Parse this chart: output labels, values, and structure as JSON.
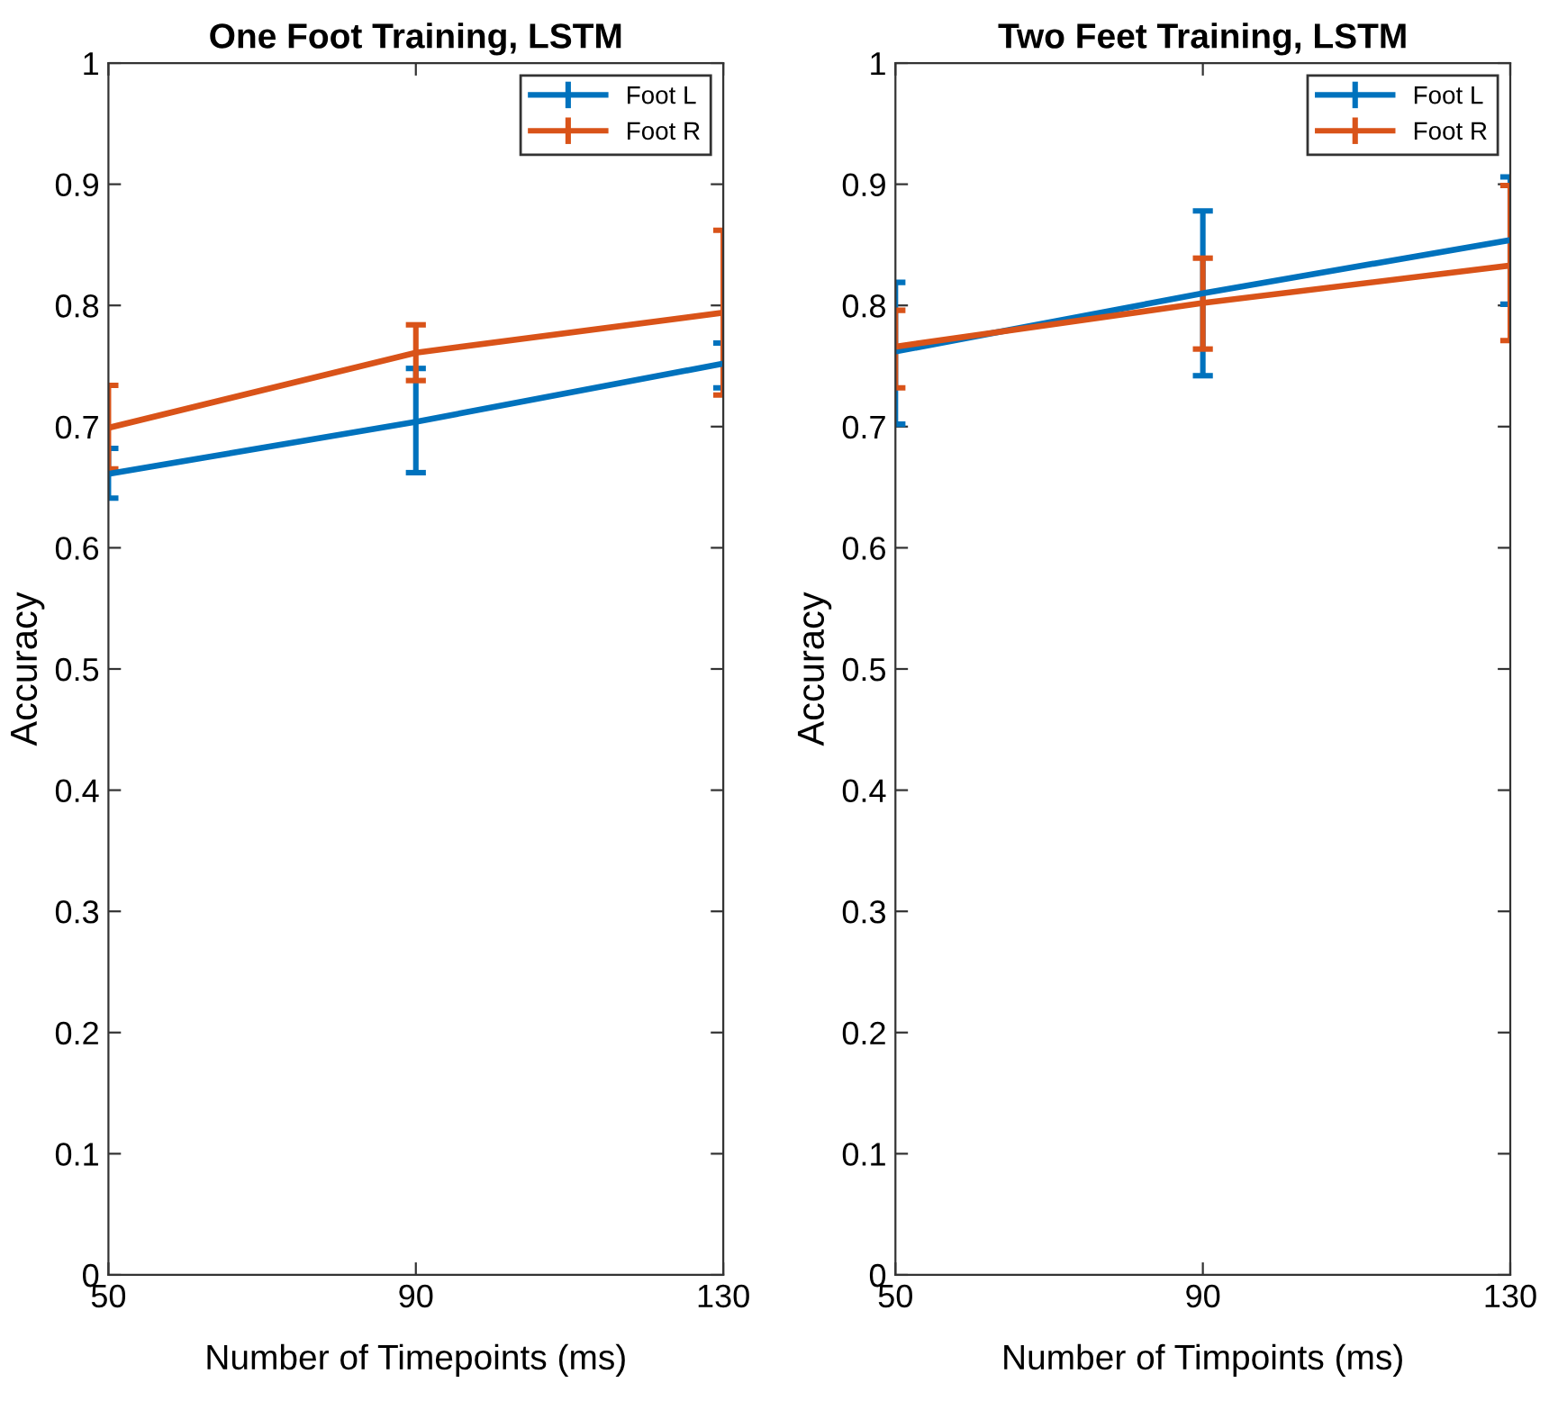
{
  "chart_data": [
    {
      "type": "line",
      "title": "One Foot Training, LSTM",
      "xlabel": "Number of Timepoints (ms)",
      "ylabel": "Accuracy",
      "x": [
        50,
        90,
        130
      ],
      "xlim": [
        50,
        130
      ],
      "xticks": [
        50,
        90,
        130
      ],
      "ylim": [
        0,
        1
      ],
      "yticks": [
        0,
        0.1,
        0.2,
        0.3,
        0.4,
        0.5,
        0.6,
        0.7,
        0.8,
        0.9,
        1
      ],
      "grid": false,
      "legend": "top right",
      "series": [
        {
          "name": "Foot L",
          "color": "#0072bd",
          "values": [
            0.661,
            0.704,
            0.752
          ],
          "errors": [
            [
              0.641,
              0.682
            ],
            [
              0.662,
              0.748
            ],
            [
              0.732,
              0.769
            ]
          ]
        },
        {
          "name": "Foot R",
          "color": "#d95319",
          "values": [
            0.699,
            0.761,
            0.794
          ],
          "errors": [
            [
              0.665,
              0.734
            ],
            [
              0.738,
              0.784
            ],
            [
              0.726,
              0.862
            ]
          ]
        }
      ]
    },
    {
      "type": "line",
      "title": "Two Feet Training, LSTM",
      "xlabel": "Number of Timpoints (ms)",
      "ylabel": "Accuracy",
      "x": [
        50,
        90,
        130
      ],
      "xlim": [
        50,
        130
      ],
      "xticks": [
        50,
        90,
        130
      ],
      "ylim": [
        0,
        1
      ],
      "yticks": [
        0,
        0.1,
        0.2,
        0.3,
        0.4,
        0.5,
        0.6,
        0.7,
        0.8,
        0.9,
        1
      ],
      "grid": false,
      "legend": "top right",
      "series": [
        {
          "name": "Foot L",
          "color": "#0072bd",
          "values": [
            0.762,
            0.81,
            0.854
          ],
          "errors": [
            [
              0.702,
              0.819
            ],
            [
              0.742,
              0.878
            ],
            [
              0.801,
              0.906
            ]
          ]
        },
        {
          "name": "Foot R",
          "color": "#d95319",
          "values": [
            0.766,
            0.802,
            0.833
          ],
          "errors": [
            [
              0.732,
              0.796
            ],
            [
              0.764,
              0.839
            ],
            [
              0.771,
              0.899
            ]
          ]
        }
      ]
    }
  ]
}
